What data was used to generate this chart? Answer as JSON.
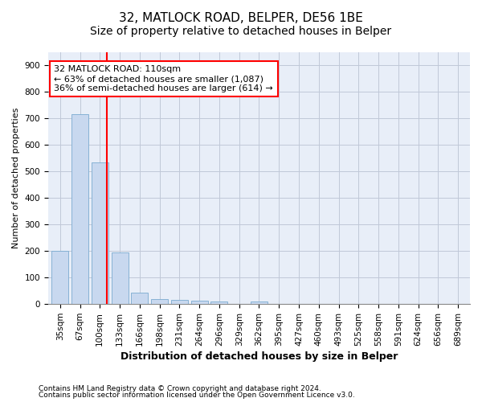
{
  "title1": "32, MATLOCK ROAD, BELPER, DE56 1BE",
  "title2": "Size of property relative to detached houses in Belper",
  "xlabel": "Distribution of detached houses by size in Belper",
  "ylabel": "Number of detached properties",
  "categories": [
    "35sqm",
    "67sqm",
    "100sqm",
    "133sqm",
    "166sqm",
    "198sqm",
    "231sqm",
    "264sqm",
    "296sqm",
    "329sqm",
    "362sqm",
    "395sqm",
    "427sqm",
    "460sqm",
    "493sqm",
    "525sqm",
    "558sqm",
    "591sqm",
    "624sqm",
    "656sqm",
    "689sqm"
  ],
  "values": [
    202,
    715,
    535,
    195,
    42,
    20,
    15,
    13,
    10,
    0,
    10,
    0,
    0,
    0,
    0,
    0,
    0,
    0,
    0,
    0,
    0
  ],
  "bar_color": "#c8d8ef",
  "bar_edge_color": "#7aaad0",
  "bar_width": 0.85,
  "ylim": [
    0,
    950
  ],
  "yticks": [
    0,
    100,
    200,
    300,
    400,
    500,
    600,
    700,
    800,
    900
  ],
  "red_line_x": 2.35,
  "annotation_line1": "32 MATLOCK ROAD: 110sqm",
  "annotation_line2": "← 63% of detached houses are smaller (1,087)",
  "annotation_line3": "36% of semi-detached houses are larger (614) →",
  "footnote1": "Contains HM Land Registry data © Crown copyright and database right 2024.",
  "footnote2": "Contains public sector information licensed under the Open Government Licence v3.0.",
  "background_color": "#ffffff",
  "plot_bg_color": "#e8eef8",
  "grid_color": "#c0c8d8",
  "title1_fontsize": 11,
  "title2_fontsize": 10,
  "xlabel_fontsize": 9,
  "ylabel_fontsize": 8,
  "tick_fontsize": 7.5,
  "annotation_fontsize": 8,
  "footnote_fontsize": 6.5
}
